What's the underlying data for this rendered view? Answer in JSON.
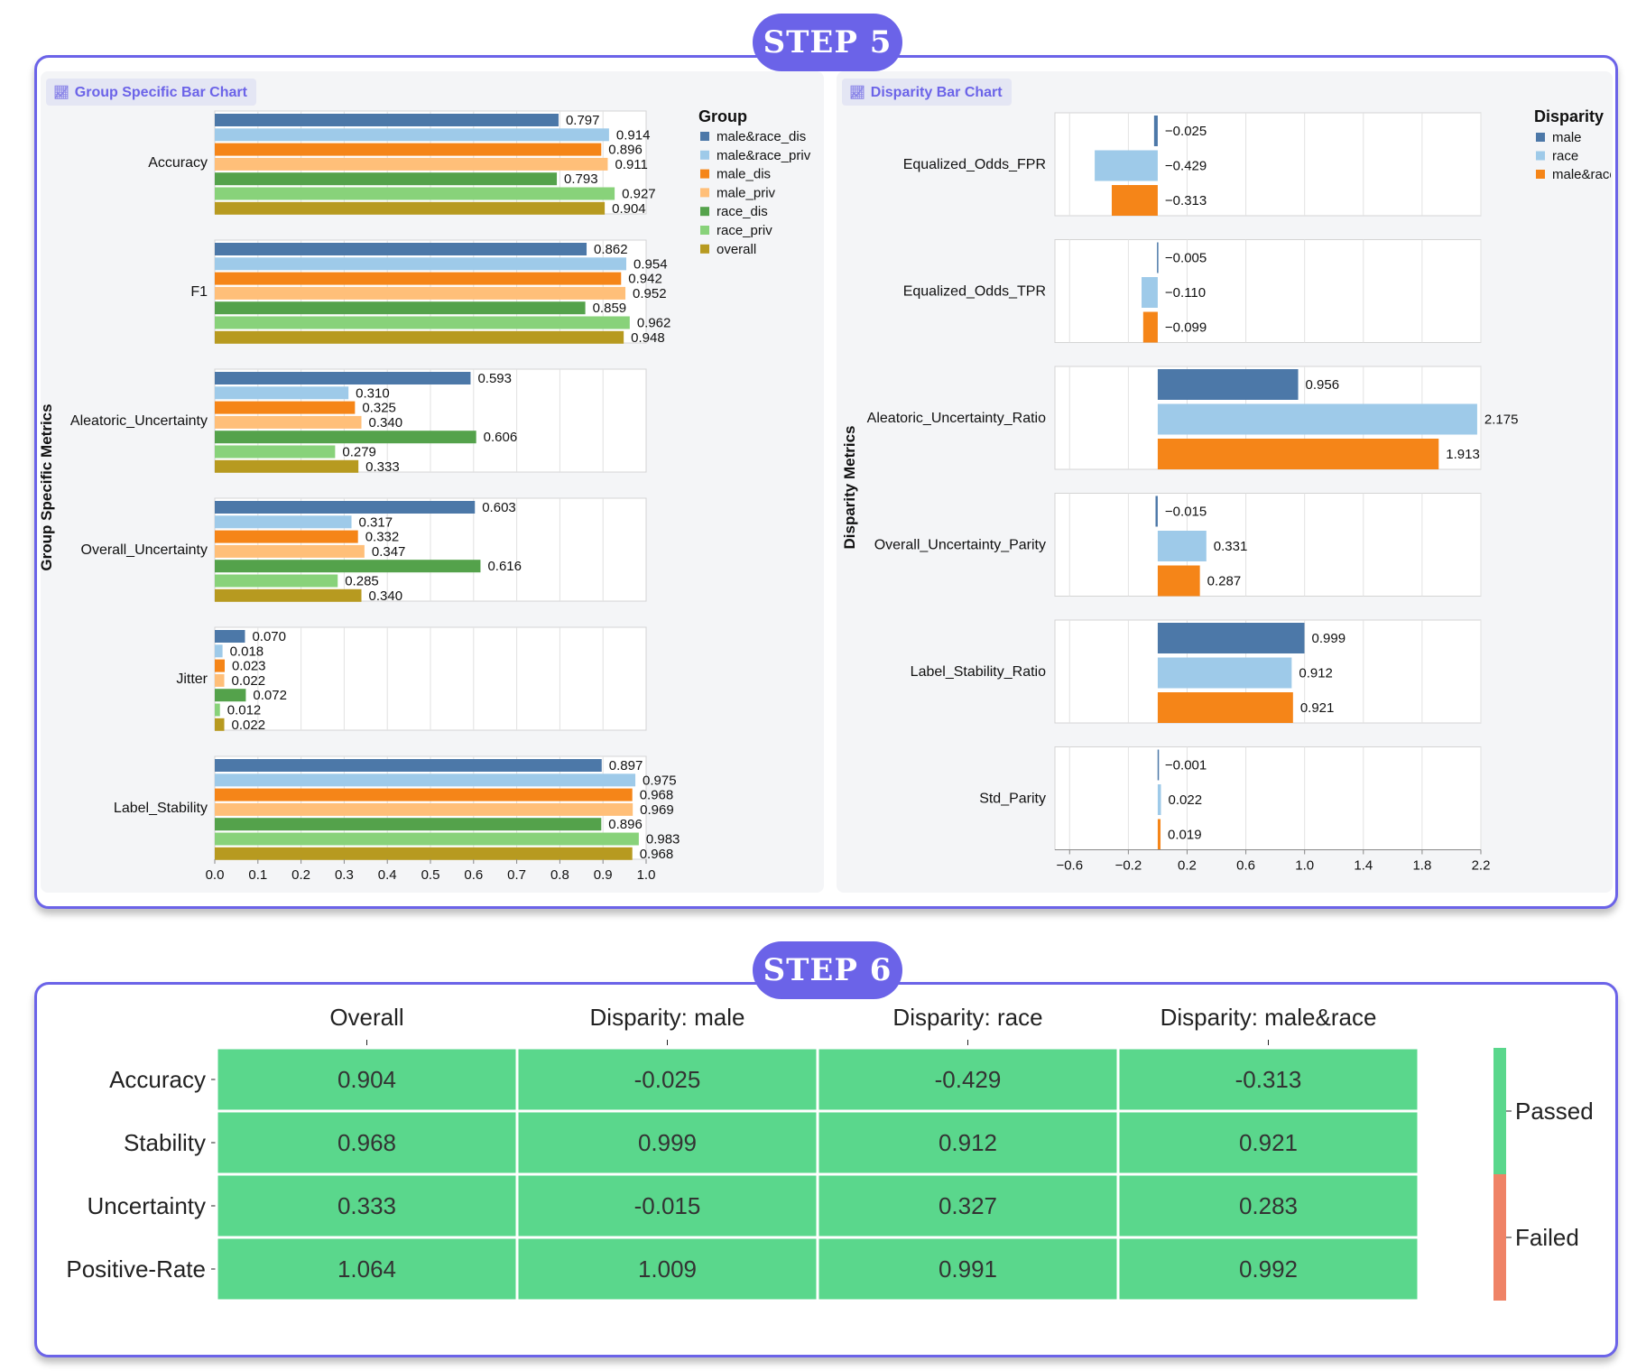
{
  "steps": {
    "step5": "STEP 5",
    "step6": "STEP 6"
  },
  "tags": {
    "group_chart": "Group Specific Bar Chart",
    "disparity_chart": "Disparity Bar Chart"
  },
  "icons": {
    "chart_tag_icon": "chart-line-icon"
  },
  "colors": {
    "accent": "#6b63e8",
    "male&race_dis": "#4c78a8",
    "male&race_priv": "#9ecae9",
    "male_dis": "#f58518",
    "male_priv": "#ffbf79",
    "race_dis": "#54a24b",
    "race_priv": "#88d27a",
    "overall": "#b79a20",
    "disp_male": "#4c78a8",
    "disp_race": "#9ecae9",
    "disp_male&race": "#f58518",
    "passed": "#5ad78c",
    "failed": "#ef8366"
  },
  "chart_data": [
    {
      "type": "bar",
      "orientation": "horizontal",
      "ylabel": "Group Specific Metrics",
      "xlim": [
        0,
        1.0
      ],
      "xticks": [
        "0.0",
        "0.1",
        "0.2",
        "0.3",
        "0.4",
        "0.5",
        "0.6",
        "0.7",
        "0.8",
        "0.9",
        "1.0"
      ],
      "legend_title": "Group",
      "legend_position": "top-right",
      "categories": [
        "Accuracy",
        "F1",
        "Aleatoric_Uncertainty",
        "Overall_Uncertainty",
        "Jitter",
        "Label_Stability"
      ],
      "series": [
        {
          "name": "male&race_dis",
          "values": [
            0.797,
            0.862,
            0.593,
            0.603,
            0.07,
            0.897
          ],
          "labels": [
            "0.797",
            "0.862",
            "0.593",
            "0.603",
            "0.070",
            "0.897"
          ]
        },
        {
          "name": "male&race_priv",
          "values": [
            0.914,
            0.954,
            0.31,
            0.317,
            0.018,
            0.975
          ],
          "labels": [
            "0.914",
            "0.954",
            "0.310",
            "0.317",
            "0.018",
            "0.975"
          ]
        },
        {
          "name": "male_dis",
          "values": [
            0.896,
            0.942,
            0.325,
            0.332,
            0.023,
            0.968
          ],
          "labels": [
            "0.896",
            "0.942",
            "0.325",
            "0.332",
            "0.023",
            "0.968"
          ]
        },
        {
          "name": "male_priv",
          "values": [
            0.911,
            0.952,
            0.34,
            0.347,
            0.022,
            0.969
          ],
          "labels": [
            "0.911",
            "0.952",
            "0.340",
            "0.347",
            "0.022",
            "0.969"
          ]
        },
        {
          "name": "race_dis",
          "values": [
            0.793,
            0.859,
            0.606,
            0.616,
            0.072,
            0.896
          ],
          "labels": [
            "0.793",
            "0.859",
            "0.606",
            "0.616",
            "0.072",
            "0.896"
          ]
        },
        {
          "name": "race_priv",
          "values": [
            0.927,
            0.962,
            0.279,
            0.285,
            0.012,
            0.983
          ],
          "labels": [
            "0.927",
            "0.962",
            "0.279",
            "0.285",
            "0.012",
            "0.983"
          ]
        },
        {
          "name": "overall",
          "values": [
            0.904,
            0.948,
            0.333,
            0.34,
            0.022,
            0.968
          ],
          "labels": [
            "0.904",
            "0.948",
            "0.333",
            "0.340",
            "0.022",
            "0.968"
          ]
        }
      ]
    },
    {
      "type": "bar",
      "orientation": "horizontal",
      "ylabel": "Disparity Metrics",
      "xlim": [
        -0.7,
        2.2
      ],
      "xticks": [
        "−0.6",
        "−0.2",
        "0.2",
        "0.6",
        "1.0",
        "1.4",
        "1.8",
        "2.2"
      ],
      "xtick_values": [
        -0.6,
        -0.2,
        0.2,
        0.6,
        1.0,
        1.4,
        1.8,
        2.2
      ],
      "legend_title": "Disparity",
      "legend_position": "top-right",
      "categories": [
        "Equalized_Odds_FPR",
        "Equalized_Odds_TPR",
        "Aleatoric_Uncertainty_Ratio",
        "Overall_Uncertainty_Parity",
        "Label_Stability_Ratio",
        "Std_Parity"
      ],
      "series": [
        {
          "name": "male",
          "values": [
            -0.025,
            -0.005,
            0.956,
            -0.015,
            0.999,
            -0.001
          ],
          "labels": [
            "−0.025",
            "−0.005",
            "0.956",
            "−0.015",
            "0.999",
            "−0.001"
          ]
        },
        {
          "name": "race",
          "values": [
            -0.429,
            -0.11,
            2.175,
            0.331,
            0.912,
            0.022
          ],
          "labels": [
            "−0.429",
            "−0.110",
            "2.175",
            "0.331",
            "0.912",
            "0.022"
          ]
        },
        {
          "name": "male&race",
          "values": [
            -0.313,
            -0.099,
            1.913,
            0.287,
            0.921,
            0.019
          ],
          "labels": [
            "−0.313",
            "−0.099",
            "1.913",
            "0.287",
            "0.921",
            "0.019"
          ]
        }
      ]
    },
    {
      "type": "heatmap",
      "columns": [
        "Overall",
        "Disparity: male",
        "Disparity: race",
        "Disparity: male&race"
      ],
      "rows": [
        "Accuracy",
        "Stability",
        "Uncertainty",
        "Positive-Rate"
      ],
      "values": [
        [
          "0.904",
          "-0.025",
          "-0.429",
          "-0.313"
        ],
        [
          "0.968",
          "0.999",
          "0.912",
          "0.921"
        ],
        [
          "0.333",
          "-0.015",
          "0.327",
          "0.283"
        ],
        [
          "1.064",
          "1.009",
          "0.991",
          "0.992"
        ]
      ],
      "status": [
        [
          "Passed",
          "Passed",
          "Passed",
          "Passed"
        ],
        [
          "Passed",
          "Passed",
          "Passed",
          "Passed"
        ],
        [
          "Passed",
          "Passed",
          "Passed",
          "Passed"
        ],
        [
          "Passed",
          "Passed",
          "Passed",
          "Passed"
        ]
      ],
      "legend": [
        "Passed",
        "Failed"
      ]
    }
  ]
}
